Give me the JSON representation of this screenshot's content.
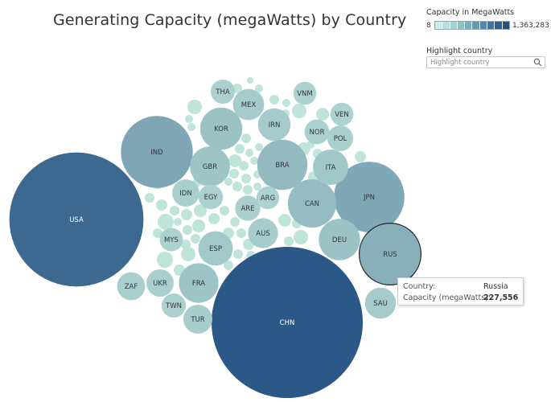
{
  "title": "Generating Capacity (megaWatts) by Country",
  "legend": {
    "title": "Capacity in MegaWatts",
    "min_label": "8",
    "max_label": "1,363,283",
    "ramp_colors": [
      "#cfeae3",
      "#b8e0d8",
      "#9fd4cf",
      "#86c5c9",
      "#6eb4c3",
      "#5aa0ba",
      "#4a8aae",
      "#3c75a0",
      "#315f8f",
      "#2a4f80"
    ]
  },
  "highlight": {
    "title": "Highlight country",
    "placeholder": "Highlight country",
    "icon": "search-icon"
  },
  "tooltip": {
    "label1": "Country:",
    "value1": "Russia",
    "label2": "Capacity (megaWatts):",
    "value2": "227,556"
  },
  "colors": {
    "bubble_low": "#bfe4da",
    "bubble_high": "#2b5886",
    "label_dark": "#333333",
    "label_light": "#ffffff",
    "selected_outline": "#222222"
  },
  "chart_data": {
    "type": "bubble",
    "size_measure": "Capacity (megaWatts)",
    "color_measure": "Capacity in MegaWatts",
    "color_range": [
      8,
      1363283
    ],
    "selected": "RUS",
    "labeled": [
      {
        "label": "CHN",
        "value": 1363283
      },
      {
        "label": "USA",
        "value": 1074000
      },
      {
        "label": "IND",
        "value": 308800
      },
      {
        "label": "JPN",
        "value": 296000
      },
      {
        "label": "RUS",
        "value": 227556
      },
      {
        "label": "BRA",
        "value": 150300
      },
      {
        "label": "CAN",
        "value": 140200
      },
      {
        "label": "KOR",
        "value": 105900
      },
      {
        "label": "DEU",
        "value": 101900
      },
      {
        "label": "GBR",
        "value": 94600
      },
      {
        "label": "FRA",
        "value": 93700
      },
      {
        "label": "ITA",
        "value": 74000
      },
      {
        "label": "ESP",
        "value": 70600
      },
      {
        "label": "IRN",
        "value": 63000
      },
      {
        "label": "MEX",
        "value": 57800
      },
      {
        "label": "SAU",
        "value": 57500
      },
      {
        "label": "AUS",
        "value": 53400
      },
      {
        "label": "TUR",
        "value": 50100
      },
      {
        "label": "ZAF",
        "value": 46800
      },
      {
        "label": "UKR",
        "value": 44700
      },
      {
        "label": "IDN",
        "value": 44000
      },
      {
        "label": "POL",
        "value": 39700
      },
      {
        "label": "ARE",
        "value": 38200
      },
      {
        "label": "NOR",
        "value": 36600
      },
      {
        "label": "EGY",
        "value": 35500
      },
      {
        "label": "THA",
        "value": 34800
      },
      {
        "label": "TWN",
        "value": 34700
      },
      {
        "label": "MYS",
        "value": 32400
      },
      {
        "label": "VNM",
        "value": 31700
      },
      {
        "label": "VEN",
        "value": 31600
      },
      {
        "label": "ARG",
        "value": 30700
      }
    ]
  }
}
